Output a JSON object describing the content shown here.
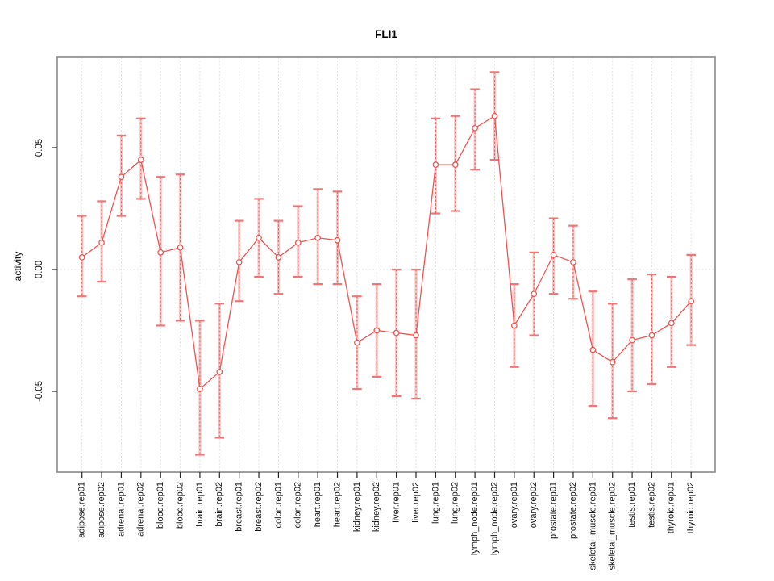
{
  "title": "FLI1",
  "colors": {
    "series_red": "#ef5350",
    "error_bar_fill": "#f59999",
    "error_cap": "#f17575",
    "gridline": "#d8d8d8",
    "plot_border": "#808080",
    "tick": "#222222",
    "text": "#111111",
    "background": "#ffffff"
  },
  "chart_data": {
    "type": "line",
    "title": "FLI1",
    "xlabel": "",
    "ylabel": "activity",
    "legend": "none",
    "grid": "dotted vertical gridline per category; dotted horizontal line at y=0",
    "marker": "open-circle",
    "error_bars": true,
    "ylim": [
      -0.088,
      0.088
    ],
    "yticks": [
      {
        "value": 0.05,
        "label": "0.05"
      },
      {
        "value": 0.0,
        "label": "0.00"
      },
      {
        "value": -0.05,
        "label": "-0.05"
      }
    ],
    "categories": [
      "adipose.rep01",
      "adipose.rep02",
      "adrenal.rep01",
      "adrenal.rep02",
      "blood.rep01",
      "blood.rep02",
      "brain.rep01",
      "brain.rep02",
      "breast.rep01",
      "breast.rep02",
      "colon.rep01",
      "colon.rep02",
      "heart.rep01",
      "heart.rep02",
      "kidney.rep01",
      "kidney.rep02",
      "liver.rep01",
      "liver.rep02",
      "lung.rep01",
      "lung.rep02",
      "lymph_node.rep01",
      "lymph_node.rep02",
      "ovary.rep01",
      "ovary.rep02",
      "prostate.rep01",
      "prostate.rep02",
      "skeletal_muscle.rep01",
      "skeletal_muscle.rep02",
      "testis.rep01",
      "testis.rep02",
      "thyroid.rep01",
      "thyroid.rep02"
    ],
    "series": [
      {
        "name": "activity",
        "values": [
          0.005,
          0.011,
          0.038,
          0.045,
          0.007,
          0.009,
          -0.049,
          -0.042,
          0.003,
          0.013,
          0.005,
          0.011,
          0.013,
          0.012,
          -0.03,
          -0.025,
          -0.026,
          -0.027,
          0.043,
          0.043,
          0.058,
          0.063,
          -0.023,
          -0.01,
          0.006,
          0.003,
          -0.033,
          -0.038,
          -0.029,
          -0.027,
          -0.022,
          -0.013
        ],
        "err_low": [
          -0.011,
          -0.005,
          0.022,
          0.029,
          -0.023,
          -0.021,
          -0.076,
          -0.069,
          -0.013,
          -0.003,
          -0.01,
          -0.003,
          -0.006,
          -0.006,
          -0.049,
          -0.044,
          -0.052,
          -0.053,
          0.023,
          0.024,
          0.041,
          0.045,
          -0.04,
          -0.027,
          -0.01,
          -0.012,
          -0.056,
          -0.061,
          -0.05,
          -0.047,
          -0.04,
          -0.031
        ],
        "err_high": [
          0.022,
          0.028,
          0.055,
          0.062,
          0.038,
          0.039,
          -0.021,
          -0.014,
          0.02,
          0.029,
          0.02,
          0.026,
          0.033,
          0.032,
          -0.011,
          -0.006,
          0.0,
          0.0,
          0.062,
          0.063,
          0.074,
          0.081,
          -0.006,
          0.007,
          0.021,
          0.018,
          -0.009,
          -0.014,
          -0.004,
          -0.002,
          -0.003,
          0.006
        ]
      }
    ]
  }
}
